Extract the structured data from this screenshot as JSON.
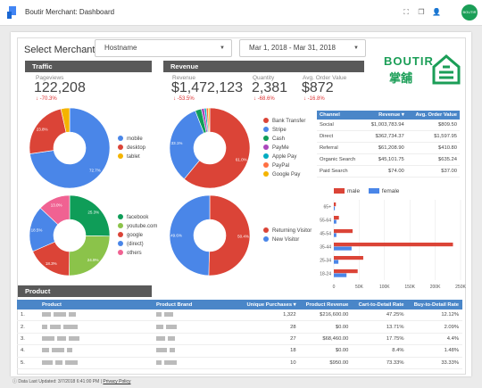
{
  "app": {
    "title": "Boutir Merchant: Dashboard",
    "avatar_text": "BOUTIR"
  },
  "filters": {
    "label": "Select Merchant",
    "dimension": "Hostname",
    "date_range": "Mar 1, 2018 - Mar 31, 2018"
  },
  "brand": {
    "name": "BOUTIR",
    "chinese": "掌舖"
  },
  "traffic": {
    "header": "Traffic",
    "kpi": {
      "label": "Pageviews",
      "value": "122,208",
      "delta": "-70.3%"
    },
    "device_legend": [
      {
        "label": "mobile",
        "color": "#4a86e8"
      },
      {
        "label": "desktop",
        "color": "#db4437"
      },
      {
        "label": "tablet",
        "color": "#f4b400"
      }
    ],
    "source_legend": [
      {
        "label": "facebook",
        "color": "#0f9d58"
      },
      {
        "label": "youtube.com",
        "color": "#8bc34a"
      },
      {
        "label": "google",
        "color": "#db4437"
      },
      {
        "label": "(direct)",
        "color": "#4a86e8"
      },
      {
        "label": "others",
        "color": "#f06292"
      }
    ]
  },
  "revenue": {
    "header": "Revenue",
    "kpis": [
      {
        "label": "Revenue",
        "value": "$1,472,123",
        "delta": "-53.5%"
      },
      {
        "label": "Quantity",
        "value": "2,381",
        "delta": "-68.6%"
      },
      {
        "label": "Avg. Order Value",
        "value": "$872",
        "delta": "-16.8%"
      }
    ],
    "payment_legend": [
      {
        "label": "Bank Transfer",
        "color": "#db4437"
      },
      {
        "label": "Stripe",
        "color": "#4a86e8"
      },
      {
        "label": "Cash",
        "color": "#0f9d58"
      },
      {
        "label": "PayMe",
        "color": "#ab47bc"
      },
      {
        "label": "Apple Pay",
        "color": "#00acc1"
      },
      {
        "label": "PayPal",
        "color": "#ff7043"
      },
      {
        "label": "Google Pay",
        "color": "#f4b400"
      }
    ],
    "visitor_legend": [
      {
        "label": "Returning Visitor",
        "color": "#db4437"
      },
      {
        "label": "New Visitor",
        "color": "#4a86e8"
      }
    ]
  },
  "channel_table": {
    "headers": [
      "Channel",
      "Revenue ▾",
      "Avg. Order Value"
    ],
    "rows": [
      [
        "Social",
        "$1,003,783.94",
        "$809.50"
      ],
      [
        "Direct",
        "$362,734.37",
        "$1,597.95"
      ],
      [
        "Referral",
        "$61,208.90",
        "$410.80"
      ],
      [
        "Organic Search",
        "$45,101.75",
        "$635.24"
      ],
      [
        "Paid Search",
        "$74.00",
        "$37.00"
      ]
    ]
  },
  "product": {
    "header": "Product",
    "headers": [
      "Product",
      "Product Brand",
      "Unique Purchases ▾",
      "Product Revenue",
      "Cart-to-Detail Rate",
      "Buy-to-Detail Rate"
    ],
    "rows": [
      {
        "index": "1.",
        "purchases": "1,322",
        "revenue": "$216,600.00",
        "cart": "47.25%",
        "buy": "12.12%"
      },
      {
        "index": "2.",
        "purchases": "28",
        "revenue": "$0.00",
        "cart": "13.71%",
        "buy": "2.09%"
      },
      {
        "index": "3.",
        "purchases": "27",
        "revenue": "$68,460.00",
        "cart": "17.75%",
        "buy": "4.4%"
      },
      {
        "index": "4.",
        "purchases": "18",
        "revenue": "$0.00",
        "cart": "8.4%",
        "buy": "1.48%"
      },
      {
        "index": "5.",
        "purchases": "10",
        "revenue": "$950.00",
        "cart": "73.33%",
        "buy": "33.33%"
      }
    ]
  },
  "footer": {
    "updated": "Data Last Updated: 3/7/2018 6:41:00 PM",
    "separator": "|",
    "privacy": "Privacy Policy"
  },
  "chart_data": [
    {
      "type": "pie",
      "title": "",
      "labels": [
        "mobile",
        "desktop",
        "tablet"
      ],
      "values": [
        72.7,
        23.8,
        3.5
      ],
      "colors": [
        "#4a86e8",
        "#db4437",
        "#f4b400"
      ]
    },
    {
      "type": "pie",
      "title": "",
      "labels": [
        "facebook",
        "youtube.com",
        "google",
        "(direct)",
        "others"
      ],
      "values": [
        25.3,
        24.9,
        18.3,
        18.5,
        13.0
      ],
      "colors": [
        "#0f9d58",
        "#8bc34a",
        "#db4437",
        "#4a86e8",
        "#f06292"
      ]
    },
    {
      "type": "pie",
      "title": "",
      "labels": [
        "Bank Transfer",
        "Stripe",
        "Cash",
        "PayMe",
        "Apple Pay",
        "PayPal",
        "Google Pay"
      ],
      "values": [
        61,
        33.1,
        2.5,
        1.2,
        0.8,
        0.8,
        0.6
      ],
      "colors": [
        "#db4437",
        "#4a86e8",
        "#0f9d58",
        "#ab47bc",
        "#00acc1",
        "#ff7043",
        "#f4b400"
      ]
    },
    {
      "type": "pie",
      "title": "",
      "labels": [
        "Returning Visitor",
        "New Visitor"
      ],
      "values": [
        50.4,
        49.6
      ],
      "colors": [
        "#db4437",
        "#4a86e8"
      ]
    },
    {
      "type": "bar",
      "orientation": "horizontal",
      "categories": [
        "65+",
        "55-64",
        "45-54",
        "35-44",
        "25-34",
        "18-24"
      ],
      "series": [
        {
          "name": "male",
          "color": "#db4437",
          "values": [
            4000,
            10000,
            37000,
            235000,
            58000,
            47000
          ]
        },
        {
          "name": "female",
          "color": "#4a86e8",
          "values": [
            2000,
            5000,
            5000,
            35000,
            9000,
            25000
          ]
        }
      ],
      "xlim": [
        0,
        250000
      ],
      "xticks": [
        "0",
        "50K",
        "100K",
        "150K",
        "200K",
        "250K"
      ],
      "legend": "top"
    }
  ]
}
